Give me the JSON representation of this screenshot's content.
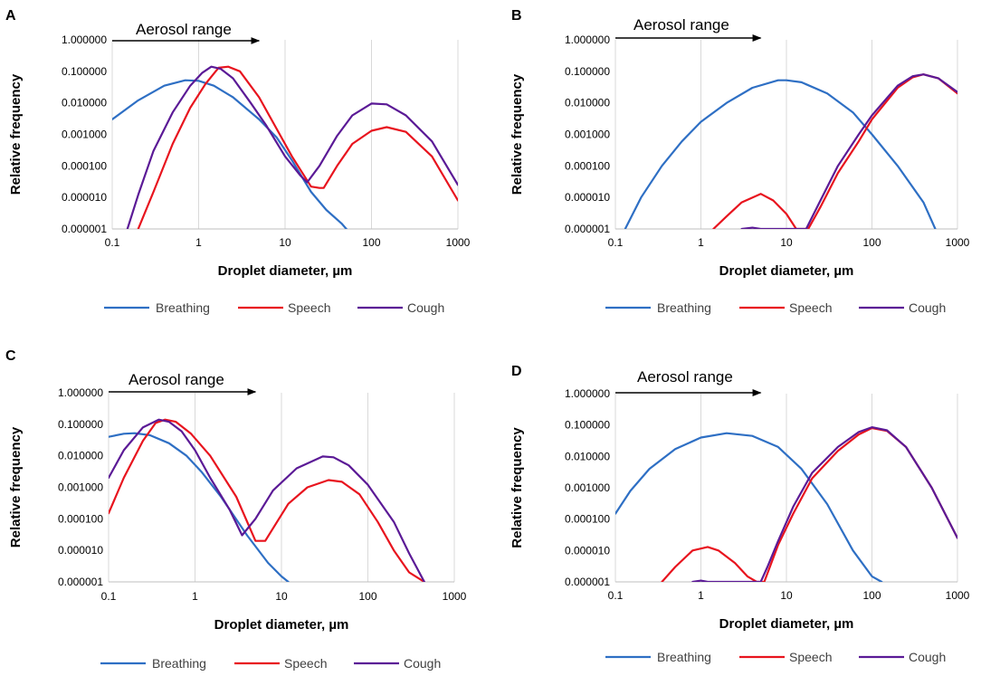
{
  "figure": {
    "series_colors": {
      "Breathing": "#2e6fc4",
      "Speech": "#e8141e",
      "Cough": "#5b1a96"
    }
  },
  "chart_data": [
    {
      "panel": "A",
      "type": "line",
      "x_scale": "log",
      "y_scale": "log",
      "title": "",
      "xlabel": "Droplet diameter, µm",
      "ylabel": "Relative frequency",
      "xlim": [
        0.1,
        1000
      ],
      "ylim": [
        1e-06,
        1
      ],
      "x_ticks": [
        "0.1",
        "1",
        "10",
        "100",
        "1000"
      ],
      "y_ticks": [
        "0.000001",
        "0.000010",
        "0.000100",
        "0.001000",
        "0.010000",
        "0.100000",
        "1.000000"
      ],
      "grid": "vertical",
      "legend": "bottom",
      "annotation": {
        "text": "Aerosol range",
        "x_from": 0.1,
        "x_to": 5
      },
      "series": [
        {
          "name": "Breathing",
          "x": [
            0.1,
            0.2,
            0.4,
            0.7,
            1,
            1.5,
            2.5,
            5,
            8,
            12,
            20,
            30,
            45,
            55
          ],
          "y": [
            0.003,
            0.012,
            0.035,
            0.052,
            0.05,
            0.035,
            0.015,
            0.003,
            0.0008,
            0.00015,
            1.5e-05,
            4e-06,
            1.5e-06,
            8e-07
          ]
        },
        {
          "name": "Speech",
          "x": [
            0.2,
            0.3,
            0.5,
            0.8,
            1.2,
            1.7,
            2.2,
            3,
            5,
            8,
            12,
            20,
            25,
            28,
            40,
            60,
            100,
            150,
            250,
            500,
            1000
          ],
          "y": [
            1e-06,
            1.5e-05,
            0.0005,
            0.007,
            0.04,
            0.13,
            0.14,
            0.1,
            0.015,
            0.0015,
            0.0002,
            2.2e-05,
            2e-05,
            2e-05,
            0.0001,
            0.0005,
            0.0013,
            0.0017,
            0.0012,
            0.0002,
            8e-06
          ]
        },
        {
          "name": "Cough",
          "x": [
            0.15,
            0.2,
            0.3,
            0.5,
            0.8,
            1.1,
            1.4,
            1.8,
            2.5,
            4,
            6,
            10,
            15,
            18,
            25,
            40,
            60,
            100,
            150,
            250,
            500,
            1000
          ],
          "y": [
            1e-06,
            1.2e-05,
            0.0003,
            0.005,
            0.035,
            0.09,
            0.14,
            0.12,
            0.06,
            0.01,
            0.002,
            0.0002,
            5e-05,
            3e-05,
            0.0001,
            0.0009,
            0.004,
            0.0095,
            0.009,
            0.004,
            0.0006,
            2.5e-05
          ]
        }
      ]
    },
    {
      "panel": "B",
      "type": "line",
      "x_scale": "log",
      "y_scale": "log",
      "title": "",
      "xlabel": "Droplet diameter, µm",
      "ylabel": "Relative frequency",
      "xlim": [
        0.1,
        1000
      ],
      "ylim": [
        1e-06,
        1
      ],
      "x_ticks": [
        "0.1",
        "1",
        "10",
        "100",
        "1000"
      ],
      "y_ticks": [
        "0.000001",
        "0.000010",
        "0.000100",
        "0.001000",
        "0.010000",
        "0.100000",
        "1.000000"
      ],
      "grid": "vertical",
      "legend": "bottom",
      "annotation": {
        "text": "Aerosol range",
        "x_from": 0.1,
        "x_to": 5
      },
      "series": [
        {
          "name": "Breathing",
          "x": [
            0.13,
            0.2,
            0.35,
            0.6,
            1,
            2,
            4,
            8,
            10,
            15,
            30,
            60,
            100,
            200,
            400,
            550
          ],
          "y": [
            1e-06,
            1e-05,
            0.0001,
            0.0006,
            0.0025,
            0.01,
            0.03,
            0.052,
            0.052,
            0.045,
            0.02,
            0.005,
            0.001,
            0.0001,
            7e-06,
            1e-06
          ]
        },
        {
          "name": "Speech",
          "x": [
            1.4,
            2,
            3,
            5,
            7,
            10,
            13,
            18,
            25,
            40,
            70,
            100,
            200,
            300,
            400,
            600,
            1000
          ],
          "y": [
            1e-06,
            2.5e-06,
            7e-06,
            1.3e-05,
            8e-06,
            3e-06,
            1e-06,
            1e-06,
            5e-06,
            6e-05,
            0.0006,
            0.003,
            0.03,
            0.065,
            0.08,
            0.06,
            0.02
          ]
        },
        {
          "name": "Cough",
          "x": [
            3,
            4,
            5,
            17,
            25,
            40,
            70,
            100,
            200,
            300,
            400,
            600,
            1000
          ],
          "y": [
            1e-06,
            1.1e-06,
            1e-06,
            1e-06,
            8e-06,
            0.0001,
            0.001,
            0.004,
            0.035,
            0.07,
            0.08,
            0.06,
            0.022
          ]
        }
      ]
    },
    {
      "panel": "C",
      "type": "line",
      "x_scale": "log",
      "y_scale": "log",
      "title": "",
      "xlabel": "Droplet diameter, µm",
      "ylabel": "Relative frequency",
      "xlim": [
        0.1,
        1000
      ],
      "ylim": [
        1e-06,
        1
      ],
      "x_ticks": [
        "0.1",
        "1",
        "10",
        "100",
        "1000"
      ],
      "y_ticks": [
        "0.000001",
        "0.000010",
        "0.000100",
        "0.001000",
        "0.010000",
        "0.100000",
        "1.000000"
      ],
      "grid": "vertical",
      "legend": "bottom",
      "annotation": {
        "text": "Aerosol range",
        "x_from": 0.1,
        "x_to": 5
      },
      "series": [
        {
          "name": "Breathing",
          "x": [
            0.1,
            0.15,
            0.2,
            0.3,
            0.5,
            0.8,
            1.2,
            2,
            4,
            7,
            10,
            12
          ],
          "y": [
            0.04,
            0.05,
            0.052,
            0.045,
            0.025,
            0.01,
            0.003,
            0.0005,
            3e-05,
            4e-06,
            1.5e-06,
            1e-06
          ]
        },
        {
          "name": "Speech",
          "x": [
            0.1,
            0.15,
            0.25,
            0.35,
            0.45,
            0.6,
            0.9,
            1.5,
            3,
            5,
            6.5,
            8,
            12,
            20,
            35,
            50,
            80,
            130,
            200,
            300,
            450
          ],
          "y": [
            0.00015,
            0.002,
            0.03,
            0.11,
            0.14,
            0.12,
            0.05,
            0.01,
            0.0005,
            2e-05,
            2e-05,
            5e-05,
            0.0003,
            0.001,
            0.0017,
            0.0015,
            0.0006,
            8e-05,
            1e-05,
            2e-06,
            1e-06
          ]
        },
        {
          "name": "Cough",
          "x": [
            0.1,
            0.15,
            0.25,
            0.38,
            0.5,
            0.7,
            1,
            1.5,
            2.5,
            3.5,
            5,
            8,
            15,
            30,
            40,
            60,
            100,
            200,
            300,
            450
          ],
          "y": [
            0.002,
            0.015,
            0.08,
            0.14,
            0.12,
            0.06,
            0.015,
            0.002,
            0.0002,
            3e-05,
            0.0001,
            0.0008,
            0.004,
            0.0095,
            0.009,
            0.005,
            0.0012,
            8e-05,
            8e-06,
            1e-06
          ]
        }
      ]
    },
    {
      "panel": "D",
      "type": "line",
      "x_scale": "log",
      "y_scale": "log",
      "title": "",
      "xlabel": "Droplet diameter, µm",
      "ylabel": "Relative frequency",
      "xlim": [
        0.1,
        1000
      ],
      "ylim": [
        1e-06,
        1
      ],
      "x_ticks": [
        "0.1",
        "1",
        "10",
        "100",
        "1000"
      ],
      "y_ticks": [
        "0.000001",
        "0.000010",
        "0.000100",
        "0.001000",
        "0.010000",
        "0.100000",
        "1.000000"
      ],
      "grid": "vertical",
      "legend": "bottom",
      "annotation": {
        "text": "Aerosol range",
        "x_from": 0.1,
        "x_to": 5
      },
      "series": [
        {
          "name": "Breathing",
          "x": [
            0.1,
            0.15,
            0.25,
            0.5,
            1,
            2,
            4,
            8,
            15,
            30,
            60,
            100,
            130
          ],
          "y": [
            0.00015,
            0.0008,
            0.004,
            0.017,
            0.04,
            0.055,
            0.045,
            0.02,
            0.004,
            0.0003,
            1e-05,
            1.5e-06,
            1e-06
          ]
        },
        {
          "name": "Speech",
          "x": [
            0.35,
            0.5,
            0.8,
            1.2,
            1.6,
            2.5,
            3.5,
            4.5,
            5.5,
            8,
            12,
            20,
            40,
            70,
            100,
            150,
            250,
            500,
            1000
          ],
          "y": [
            1e-06,
            3e-06,
            1e-05,
            1.3e-05,
            1e-05,
            4e-06,
            1.5e-06,
            1e-06,
            1e-06,
            1.5e-05,
            0.00015,
            0.002,
            0.015,
            0.05,
            0.08,
            0.065,
            0.02,
            0.001,
            2.5e-05
          ]
        },
        {
          "name": "Cough",
          "x": [
            0.8,
            1,
            1.2,
            5,
            6,
            8,
            12,
            20,
            40,
            70,
            100,
            150,
            250,
            500,
            1000
          ],
          "y": [
            1e-06,
            1.1e-06,
            1e-06,
            1e-06,
            3e-06,
            2e-05,
            0.00025,
            0.003,
            0.02,
            0.06,
            0.085,
            0.068,
            0.02,
            0.001,
            2.5e-05
          ]
        }
      ]
    }
  ]
}
